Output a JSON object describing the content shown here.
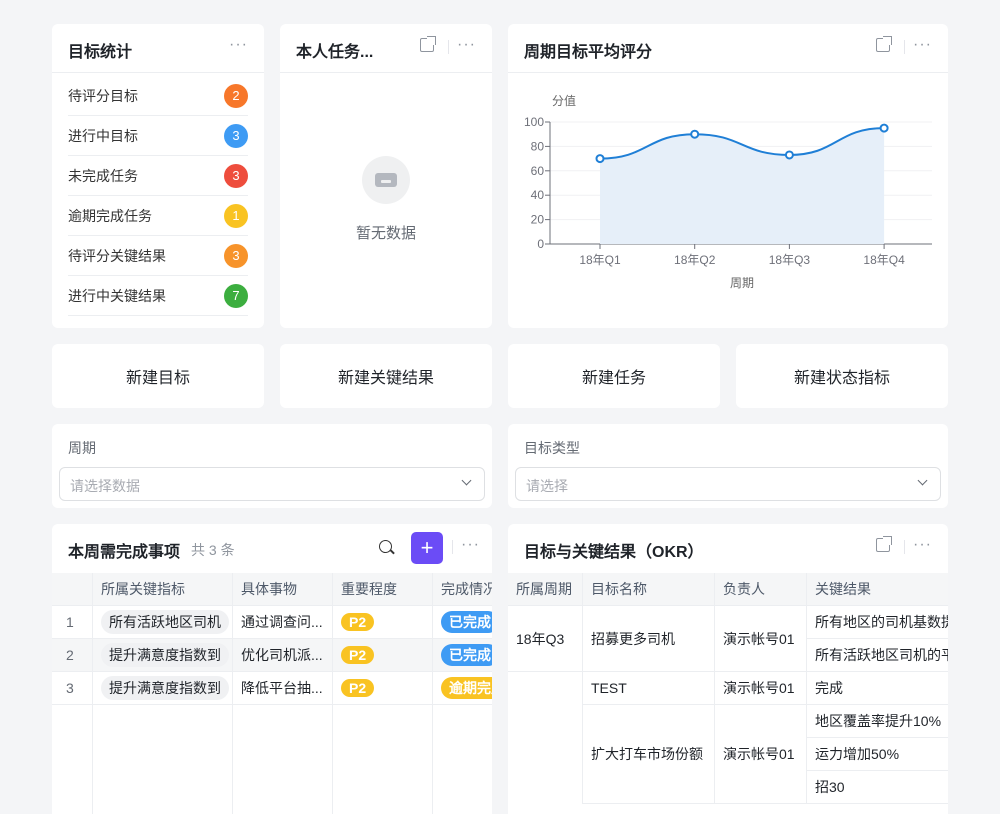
{
  "stats": {
    "title": "目标统计",
    "items": [
      {
        "label": "待评分目标",
        "count": "2",
        "color": "#f7772a"
      },
      {
        "label": "进行中目标",
        "count": "3",
        "color": "#3e9bf4"
      },
      {
        "label": "未完成任务",
        "count": "3",
        "color": "#ee4d3d"
      },
      {
        "label": "逾期完成任务",
        "count": "1",
        "color": "#f9c322"
      },
      {
        "label": "待评分关键结果",
        "count": "3",
        "color": "#f7932a"
      },
      {
        "label": "进行中关键结果",
        "count": "7",
        "color": "#3cae3f"
      }
    ]
  },
  "tasks": {
    "title": "本人任务...",
    "empty": "暂无数据"
  },
  "chart_card": {
    "title": "周期目标平均评分"
  },
  "chart_data": {
    "type": "area",
    "title": "",
    "xlabel": "周期",
    "ylabel": "分值",
    "categories": [
      "18年Q1",
      "18年Q2",
      "18年Q3",
      "18年Q4"
    ],
    "values": [
      70,
      90,
      73,
      95
    ],
    "ylim": [
      0,
      100
    ],
    "yticks": [
      0,
      20,
      40,
      60,
      80,
      100
    ],
    "grid": true,
    "smooth": true,
    "color": "#1f7fd6",
    "fill": "#e6eff9"
  },
  "actions": [
    "新建目标",
    "新建关键结果",
    "新建任务",
    "新建状态指标"
  ],
  "filters": [
    {
      "label": "周期",
      "placeholder": "请选择数据"
    },
    {
      "label": "目标类型",
      "placeholder": "请选择"
    }
  ],
  "weekly": {
    "title": "本周需完成事项",
    "count": "共 3 条",
    "add_color": "#6b4cf6",
    "columns": [
      "",
      "所属关键指标",
      "具体事物",
      "重要程度",
      "完成情况"
    ],
    "rows": [
      {
        "idx": "1",
        "kr": "所有活跃地区司机",
        "item": "通过调查问...",
        "priority": "P2",
        "status": "已完成",
        "status_color": "#3e9bf4"
      },
      {
        "idx": "2",
        "kr": "提升满意度指数到",
        "item": "优化司机派...",
        "priority": "P2",
        "status": "已完成",
        "status_color": "#3e9bf4"
      },
      {
        "idx": "3",
        "kr": "提升满意度指数到",
        "item": "降低平台抽...",
        "priority": "P2",
        "status": "逾期完成",
        "status_color": "#f9c322"
      }
    ]
  },
  "okr": {
    "title": "目标与关键结果（OKR）",
    "columns": [
      "所属周期",
      "目标名称",
      "负责人",
      "关键结果"
    ],
    "groups": [
      {
        "period": "18年Q3",
        "name": "招募更多司机",
        "owner": "演示帐号01",
        "krs": [
          "所有地区的司机基数提",
          "所有活跃地区司机的平"
        ]
      },
      {
        "period": "",
        "name": "TEST",
        "owner": "演示帐号01",
        "krs": [
          "完成"
        ]
      },
      {
        "period": "",
        "name": "扩大打车市场份额",
        "owner": "演示帐号01",
        "krs": [
          "地区覆盖率提升10%",
          "运力增加50%",
          "招30"
        ]
      }
    ]
  }
}
